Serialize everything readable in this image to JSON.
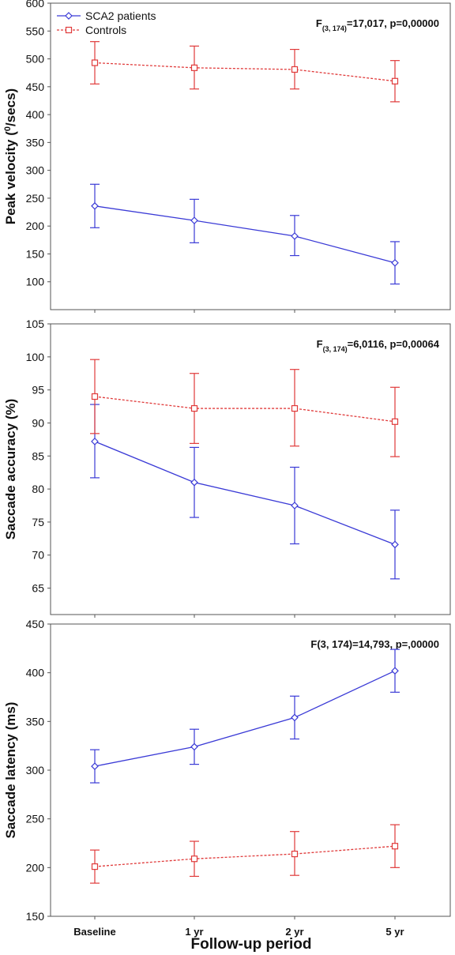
{
  "colors": {
    "patients": "#3a3ad6",
    "controls": "#e03a3a",
    "frame": "#555555"
  },
  "legend": {
    "patients": "SCA2 patients",
    "controls": "Controls"
  },
  "xlabel": "Follow-up period",
  "chart_data": [
    {
      "type": "line",
      "ylabel": "Peak velocity (",
      "ylabel_sup": "0",
      "ylabel_end": "/secs)",
      "stat": {
        "pre": "F",
        "sub": "(3, 174)",
        "post": "=17,017, p=0,00000"
      },
      "categories": [
        "Baseline",
        "1 yr",
        "2 yr",
        "5 yr"
      ],
      "ylim": [
        50,
        600
      ],
      "yticks": [
        100,
        150,
        200,
        250,
        300,
        350,
        400,
        450,
        500,
        550,
        600
      ],
      "series": [
        {
          "name": "SCA2 patients",
          "key": "patients",
          "values": [
            236,
            210,
            182,
            134
          ],
          "lower": [
            197,
            170,
            147,
            96
          ],
          "upper": [
            275,
            248,
            219,
            172
          ]
        },
        {
          "name": "Controls",
          "key": "controls",
          "values": [
            493,
            484,
            481,
            460
          ],
          "lower": [
            455,
            446,
            446,
            423
          ],
          "upper": [
            531,
            523,
            517,
            497
          ]
        }
      ]
    },
    {
      "type": "line",
      "ylabel": "Saccade accuracy (%)",
      "stat": {
        "pre": "F",
        "sub": "(3, 174)",
        "post": "=6,0116, p=0,00064"
      },
      "categories": [
        "Baseline",
        "1 yr",
        "2 yr",
        "5 yr"
      ],
      "ylim": [
        61,
        105
      ],
      "yticks": [
        65,
        70,
        75,
        80,
        85,
        90,
        95,
        100,
        105
      ],
      "series": [
        {
          "name": "SCA2 patients",
          "key": "patients",
          "values": [
            87.2,
            81.0,
            77.5,
            71.6
          ],
          "lower": [
            81.7,
            75.7,
            71.7,
            66.4
          ],
          "upper": [
            92.8,
            86.3,
            83.3,
            76.8
          ]
        },
        {
          "name": "Controls",
          "key": "controls",
          "values": [
            94.0,
            92.2,
            92.2,
            90.2
          ],
          "lower": [
            88.4,
            86.9,
            86.5,
            84.9
          ],
          "upper": [
            99.6,
            97.5,
            98.1,
            95.4
          ]
        }
      ]
    },
    {
      "type": "line",
      "ylabel": "Saccade latency (ms)",
      "stat": {
        "pre": "F(3, 174)=14,793, p=,00000",
        "sub": "",
        "post": ""
      },
      "categories": [
        "Baseline",
        "1 yr",
        "2 yr",
        "5 yr"
      ],
      "ylim": [
        150,
        450
      ],
      "yticks": [
        150,
        200,
        250,
        300,
        350,
        400,
        450
      ],
      "series": [
        {
          "name": "SCA2 patients",
          "key": "patients",
          "values": [
            304,
            324,
            354,
            402
          ],
          "lower": [
            287,
            306,
            332,
            380
          ],
          "upper": [
            321,
            342,
            376,
            424
          ]
        },
        {
          "name": "Controls",
          "key": "controls",
          "values": [
            201,
            209,
            214,
            222
          ],
          "lower": [
            184,
            191,
            192,
            200
          ],
          "upper": [
            218,
            227,
            237,
            244
          ]
        }
      ]
    }
  ]
}
